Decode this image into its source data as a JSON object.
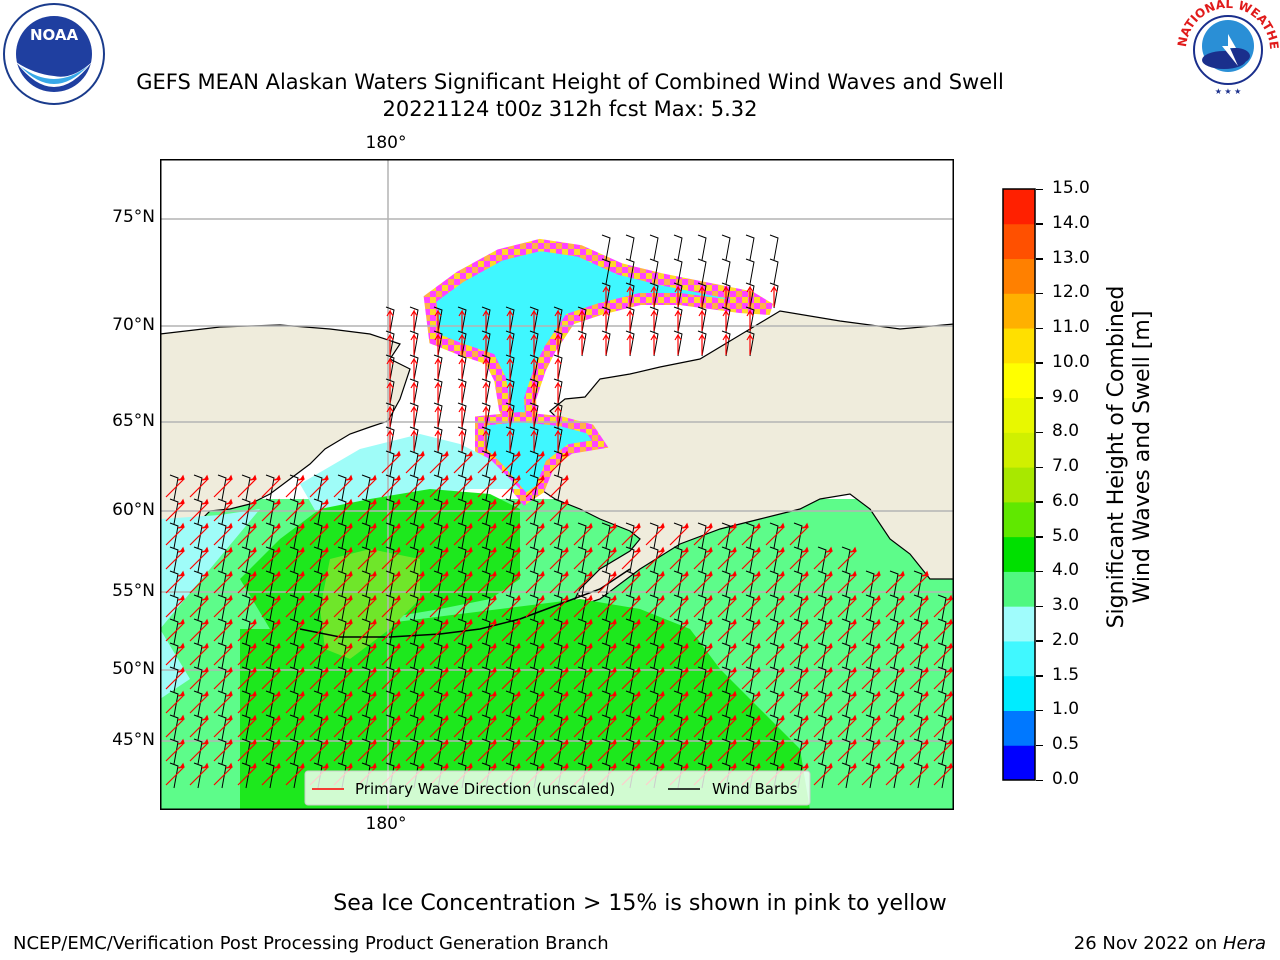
{
  "header": {
    "title_line1": "GEFS MEAN Alaskan Waters Significant Height of Combined Wind Waves and Swell",
    "title_line2": "20221124 t00z 312h fcst   Max: 5.32"
  },
  "logos": {
    "left": {
      "name": "noaa-logo",
      "text": "NOAA"
    },
    "right": {
      "name": "nws-logo",
      "ring_text": "NATIONAL WEATHER SERVICE"
    }
  },
  "map": {
    "lon_labels": [
      "180°",
      "180°"
    ],
    "lat_labels": [
      "75°N",
      "70°N",
      "65°N",
      "60°N",
      "55°N",
      "50°N",
      "45°N"
    ],
    "colors": {
      "land": "#efecdc",
      "ocean_light": "#5dfc8a",
      "ocean_mid": "#1de81d",
      "ocean_high": "#3bd83b",
      "ocean_peak": "#6fe62a",
      "coastal_cyan": "#9ffcf8",
      "ice_cyan": "#3ff7ff",
      "ice_edge_pink": "#ff44ff",
      "ice_edge_orange": "#ffb04a",
      "ice_edge_yellow": "#ffd82a",
      "grid": "#b4b4b4",
      "arrow": "#ff0000",
      "barb": "#000000"
    },
    "legend": {
      "primary_wave": "Primary Wave Direction (unscaled)",
      "wind_barbs": "Wind Barbs"
    }
  },
  "colorbar": {
    "title_line1": "Significant Height of Combined",
    "title_line2": "Wind Waves and Swell [m]",
    "ticks": [
      "0.0",
      "0.5",
      "1.0",
      "1.5",
      "2.0",
      "3.0",
      "4.0",
      "5.0",
      "6.0",
      "7.0",
      "8.0",
      "9.0",
      "10.0",
      "11.0",
      "12.0",
      "13.0",
      "14.0",
      "15.0"
    ],
    "colors": [
      "#0000ff",
      "#0078ff",
      "#00ecff",
      "#40f8ff",
      "#a0fcfc",
      "#50f880",
      "#00e000",
      "#60e800",
      "#a8e800",
      "#d0f000",
      "#e8f800",
      "#ffff00",
      "#ffe000",
      "#ffb000",
      "#ff8000",
      "#ff5000",
      "#ff2000"
    ]
  },
  "footer": {
    "note": "Sea Ice Concentration > 15% is shown in pink to yellow",
    "credit_left": "NCEP/EMC/Verification Post Processing Product Generation Branch",
    "credit_right_prefix": "26 Nov 2022 on ",
    "credit_right_machine": "Hera"
  }
}
